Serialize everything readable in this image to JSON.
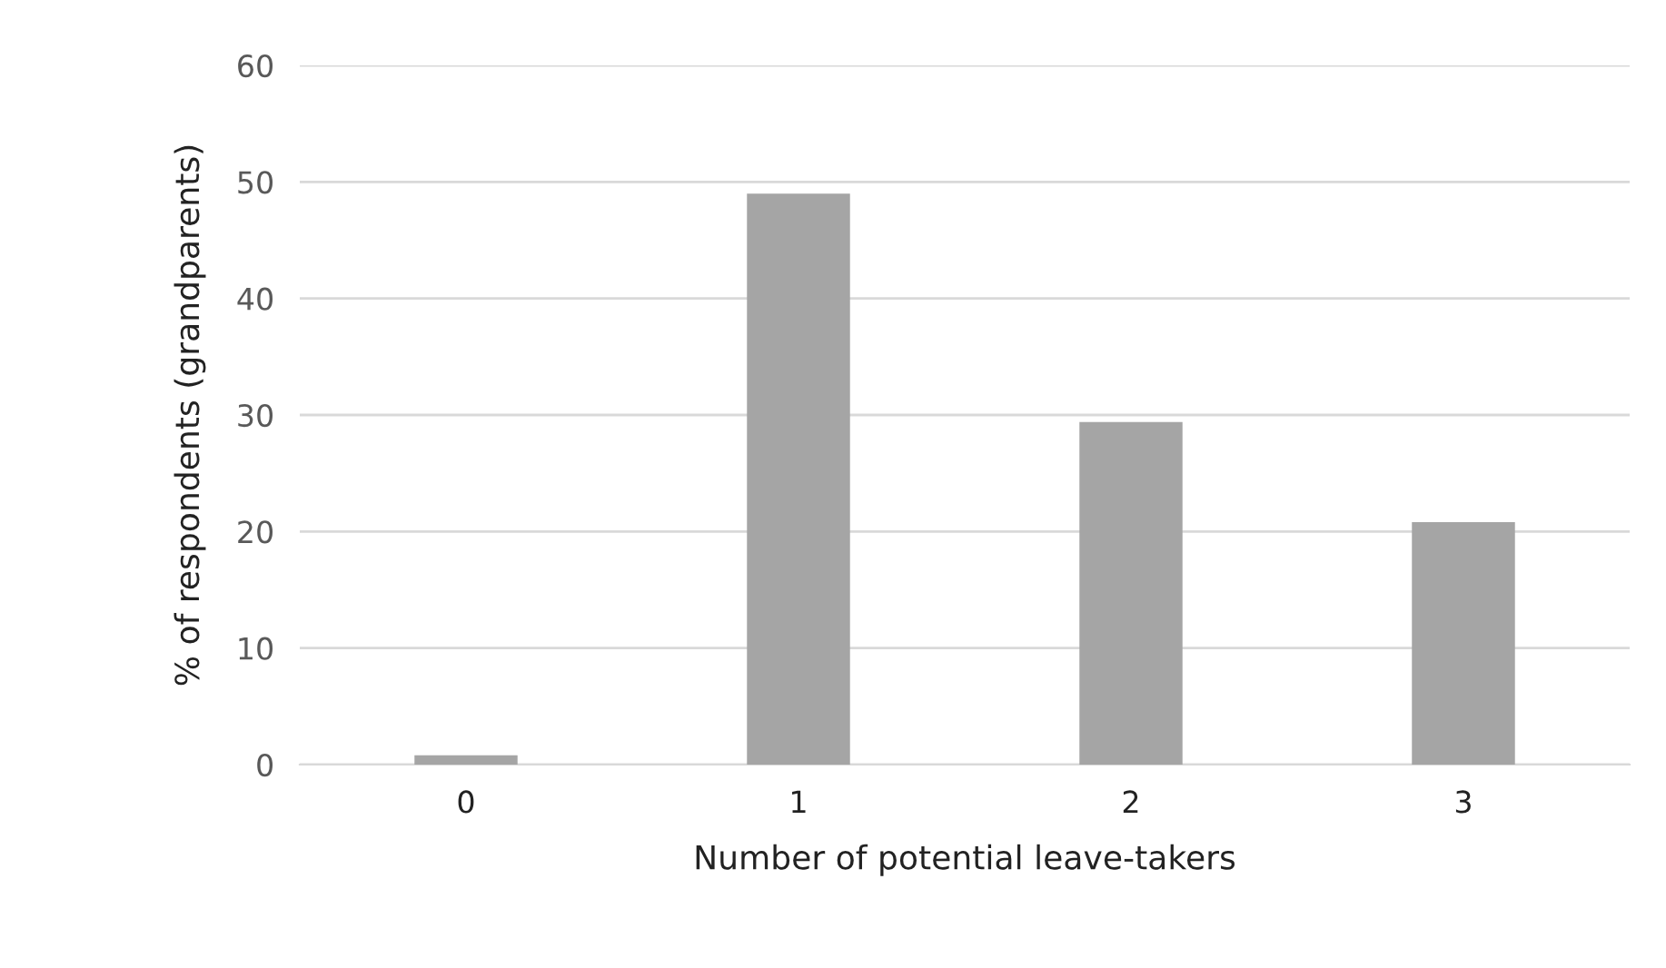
{
  "chart_data": {
    "type": "bar",
    "xlabel": "Number of potential leave-takers",
    "ylabel": "% of respondents (grandparents)",
    "categories": [
      "0",
      "1",
      "2",
      "3"
    ],
    "values": [
      0.8,
      49,
      29.4,
      20.8
    ],
    "color": "#a5a5a5",
    "ylim": [
      0,
      60
    ],
    "yticks": [
      0,
      10,
      20,
      30,
      40,
      50,
      60
    ],
    "grid": "y"
  }
}
